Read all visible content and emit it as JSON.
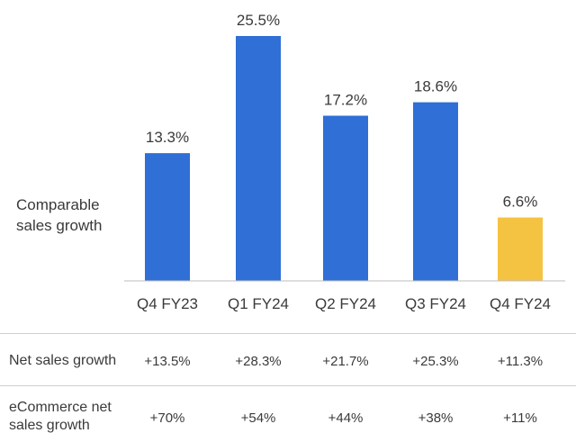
{
  "chart_data": {
    "type": "bar",
    "ylabel_lines": [
      "Comparable",
      "sales growth"
    ],
    "categories": [
      "Q4 FY23",
      "Q1 FY24",
      "Q2 FY24",
      "Q3 FY24",
      "Q4 FY24"
    ],
    "values": [
      13.3,
      25.5,
      17.2,
      18.6,
      6.6
    ],
    "value_labels": [
      "13.3%",
      "25.5%",
      "17.2%",
      "18.6%",
      "6.6%"
    ],
    "bar_colors": [
      "#2f6fd6",
      "#2f6fd6",
      "#2f6fd6",
      "#2f6fd6",
      "#f5c342"
    ],
    "ylim": [
      0,
      26
    ],
    "grid": false,
    "legend": "none"
  },
  "table": {
    "rows": [
      {
        "label_lines": [
          "Net sales growth"
        ],
        "values": [
          "+13.5%",
          "+28.3%",
          "+21.7%",
          "+25.3%",
          "+11.3%"
        ]
      },
      {
        "label_lines": [
          "eCommerce net",
          "sales growth"
        ],
        "values": [
          "+70%",
          "+54%",
          "+44%",
          "+38%",
          "+11%"
        ]
      }
    ]
  }
}
